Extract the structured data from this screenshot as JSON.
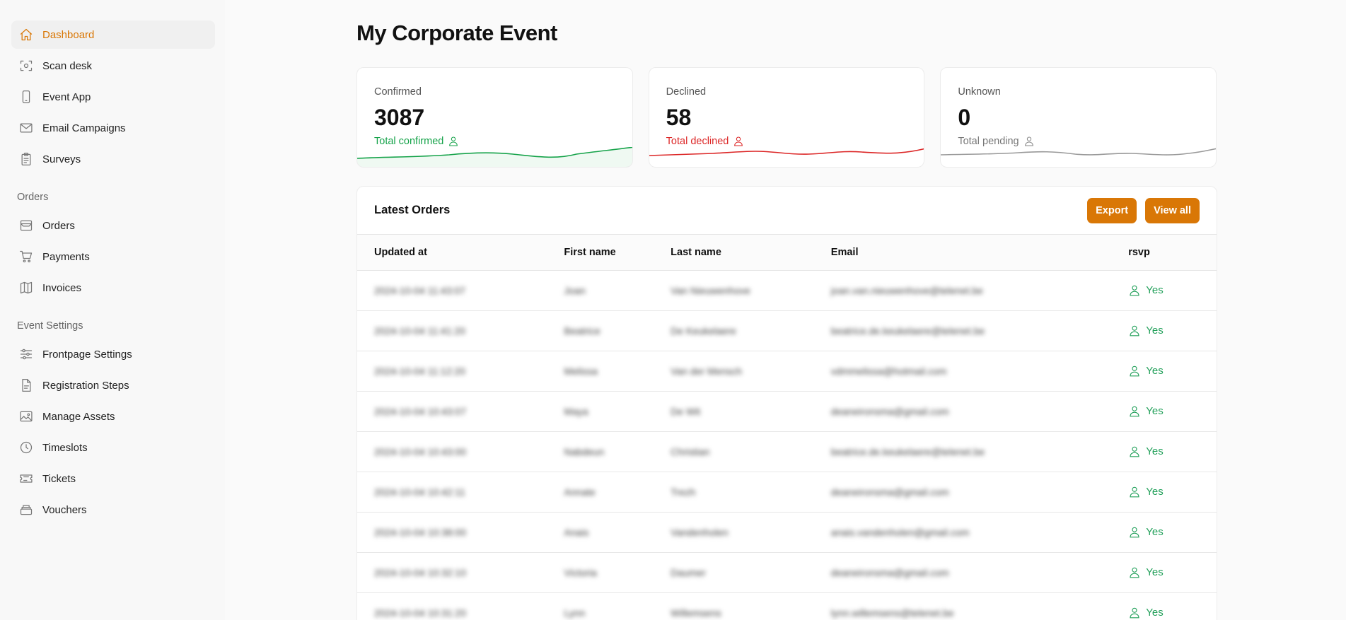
{
  "sidebar": {
    "main_items": [
      {
        "label": "Dashboard",
        "icon": "home-icon",
        "active": true
      },
      {
        "label": "Scan desk",
        "icon": "scan-icon"
      },
      {
        "label": "Event App",
        "icon": "phone-icon"
      },
      {
        "label": "Email Campaigns",
        "icon": "mail-icon"
      },
      {
        "label": "Surveys",
        "icon": "clipboard-icon"
      }
    ],
    "orders_section": {
      "title": "Orders",
      "items": [
        {
          "label": "Orders",
          "icon": "inbox-icon"
        },
        {
          "label": "Payments",
          "icon": "cart-icon"
        },
        {
          "label": "Invoices",
          "icon": "map-icon"
        }
      ]
    },
    "settings_section": {
      "title": "Event Settings",
      "items": [
        {
          "label": "Frontpage Settings",
          "icon": "sliders-icon"
        },
        {
          "label": "Registration Steps",
          "icon": "file-icon"
        },
        {
          "label": "Manage Assets",
          "icon": "image-icon"
        },
        {
          "label": "Timeslots",
          "icon": "clock-icon"
        },
        {
          "label": "Tickets",
          "icon": "ticket-icon"
        },
        {
          "label": "Vouchers",
          "icon": "stack-icon"
        }
      ]
    }
  },
  "page": {
    "title": "My Corporate Event"
  },
  "stats": [
    {
      "label": "Confirmed",
      "value": "3087",
      "sub": "Total confirmed",
      "color": "#16a34a"
    },
    {
      "label": "Declined",
      "value": "58",
      "sub": "Total declined",
      "color": "#dc2626"
    },
    {
      "label": "Unknown",
      "value": "0",
      "sub": "Total pending",
      "color": "#888888"
    }
  ],
  "orders": {
    "title": "Latest Orders",
    "export_label": "Export",
    "view_all_label": "View all",
    "columns": [
      "Updated at",
      "First name",
      "Last name",
      "Email",
      "rsvp"
    ],
    "rows": [
      {
        "updated": "2024-10-04 11:43:07",
        "first": "Joan",
        "last": "Van Nieuwenhove",
        "email": "joan.van.nieuwenhove@telenet.be",
        "rsvp": "Yes"
      },
      {
        "updated": "2024-10-04 11:41:20",
        "first": "Beatrice",
        "last": "De Keukelaere",
        "email": "beatrice.de.keukelaere@telenet.be",
        "rsvp": "Yes"
      },
      {
        "updated": "2024-10-04 11:12:20",
        "first": "Melissa",
        "last": "Van der Mensch",
        "email": "vdmmelissa@hotmail.com",
        "rsvp": "Yes"
      },
      {
        "updated": "2024-10-04 10:43:07",
        "first": "Maya",
        "last": "De Wit",
        "email": "deaneironsma@gmail.com",
        "rsvp": "Yes"
      },
      {
        "updated": "2024-10-04 10:43:00",
        "first": "Nabdeun",
        "last": "Christian",
        "email": "beatrice.de.keukelaere@telenet.be",
        "rsvp": "Yes"
      },
      {
        "updated": "2024-10-04 10:42:11",
        "first": "Annate",
        "last": "Trezh",
        "email": "deaneironsma@gmail.com",
        "rsvp": "Yes"
      },
      {
        "updated": "2024-10-04 10:38:00",
        "first": "Anais",
        "last": "Vandenholen",
        "email": "anais.vandenholen@gmail.com",
        "rsvp": "Yes"
      },
      {
        "updated": "2024-10-04 10:32:10",
        "first": "Victoria",
        "last": "Daumer",
        "email": "deaneironsma@gmail.com",
        "rsvp": "Yes"
      },
      {
        "updated": "2024-10-04 10:31:20",
        "first": "Lynn",
        "last": "Willemsens",
        "email": "lynn.willemsens@telenet.be",
        "rsvp": "Yes"
      }
    ]
  }
}
